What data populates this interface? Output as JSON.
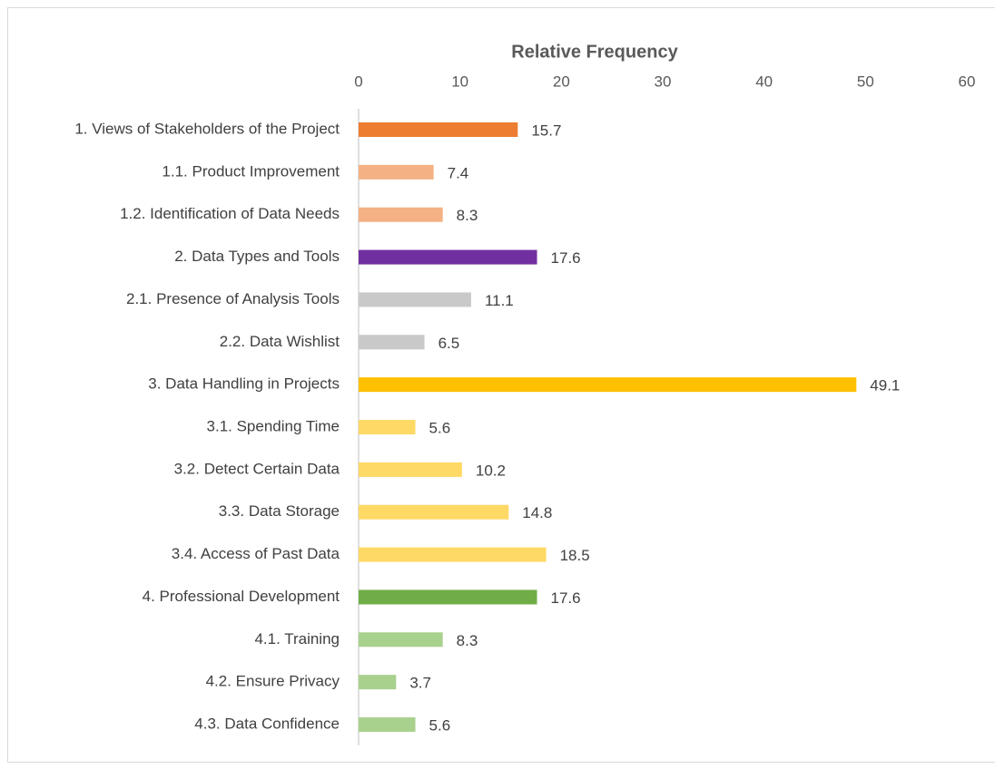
{
  "chart_data": {
    "type": "hbar",
    "title": "Relative Frequency",
    "categories": [
      "1. Views of Stakeholders of the Project",
      "1.1. Product Improvement",
      "1.2. Identification of Data Needs",
      "2. Data Types and Tools",
      "2.1. Presence of Analysis Tools",
      "2.2. Data Wishlist",
      "3. Data Handling in Projects",
      "3.1. Spending Time",
      "3.2. Detect Certain Data",
      "3.3. Data Storage",
      "3.4. Access of Past Data",
      "4. Professional Development",
      "4.1. Training",
      "4.2. Ensure Privacy",
      "4.3. Data Confidence"
    ],
    "values": [
      15.7,
      7.4,
      8.3,
      17.6,
      11.1,
      6.5,
      49.1,
      5.6,
      10.2,
      14.8,
      18.5,
      17.6,
      8.3,
      3.7,
      5.6
    ],
    "colors": [
      "#ED7D31",
      "#F4B183",
      "#F4B183",
      "#7030A0",
      "#C9C9C9",
      "#C9C9C9",
      "#FFC000",
      "#FFD966",
      "#FFD966",
      "#FFD966",
      "#FFD966",
      "#70AD47",
      "#A9D18E",
      "#A9D18E",
      "#A9D18E"
    ],
    "xlim": [
      0,
      60
    ],
    "xticks": [
      0,
      10,
      20,
      30,
      40,
      50,
      60
    ],
    "grid": false
  }
}
